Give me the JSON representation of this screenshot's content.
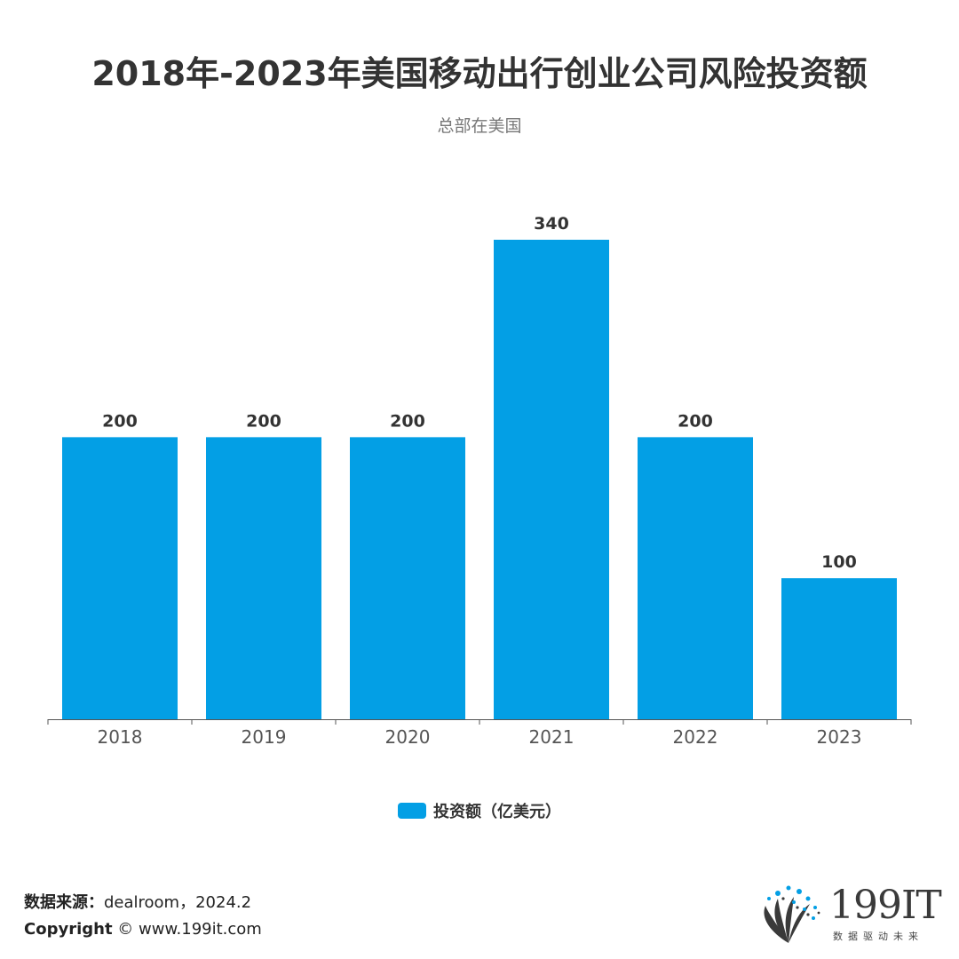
{
  "chart_data": {
    "type": "bar",
    "title": "2018年-2023年美国移动出行创业公司风险投资额",
    "subtitle": "总部在美国",
    "categories": [
      "2018",
      "2019",
      "2020",
      "2021",
      "2022",
      "2023"
    ],
    "series": [
      {
        "name": "投资额（亿美元）",
        "values": [
          200,
          200,
          200,
          340,
          200,
          100
        ]
      }
    ],
    "data_labels": [
      "200",
      "200",
      "200",
      "340",
      "200",
      "100"
    ],
    "ylim": [
      0,
      340
    ],
    "grid": false,
    "legend_position": "bottom-center",
    "bar_color": "#039FE5"
  },
  "footer": {
    "source_label": "数据来源：",
    "source_value": "dealroom，2024.2",
    "copyright_label": "Copyright",
    "copyright_value": "© www.199it.com"
  },
  "logo": {
    "text": "199IT",
    "slogan": "数据驱动未来"
  },
  "colors": {
    "accent": "#039FE5",
    "title": "#333333",
    "axis": "#555555"
  }
}
